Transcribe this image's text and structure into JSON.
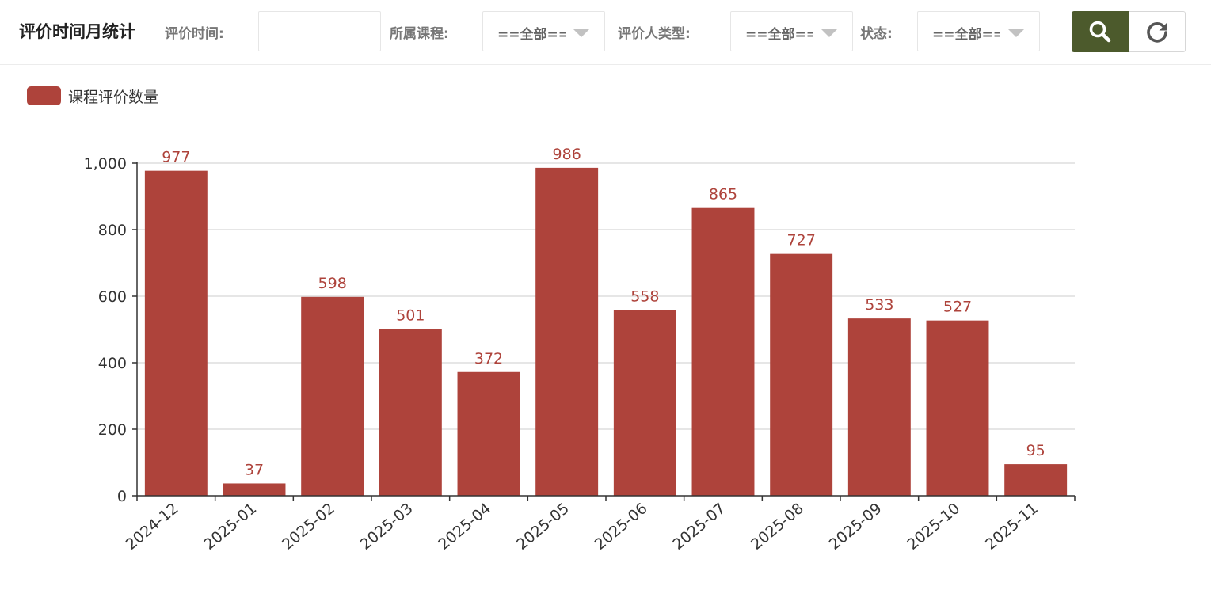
{
  "header": {
    "title": "评价时间月统计",
    "filters": {
      "time_label": "评价时间:",
      "time_value": "",
      "course_label": "所属课程:",
      "course_value": "==全部==",
      "evaluator_type_label": "评价人类型:",
      "evaluator_type_value": "==全部==",
      "status_label": "状态:",
      "status_value": "==全部=="
    },
    "buttons": {
      "search_icon": "search-icon",
      "reset_icon": "refresh-icon",
      "search_color": "#4c5a2c"
    }
  },
  "chart_data": {
    "type": "bar",
    "categories": [
      "2024-12",
      "2025-01",
      "2025-02",
      "2025-03",
      "2025-04",
      "2025-05",
      "2025-06",
      "2025-07",
      "2025-08",
      "2025-09",
      "2025-10",
      "2025-11"
    ],
    "series": [
      {
        "name": "课程评价数量",
        "values": [
          977,
          37,
          598,
          501,
          372,
          986,
          558,
          865,
          727,
          533,
          527,
          95
        ],
        "color": "#ae433b"
      }
    ],
    "y_ticks": [
      "0",
      "200",
      "400",
      "600",
      "800",
      "1,000"
    ],
    "ylim": [
      0,
      1000
    ],
    "grid": true,
    "legend_position": "top-left",
    "data_labels": true
  }
}
